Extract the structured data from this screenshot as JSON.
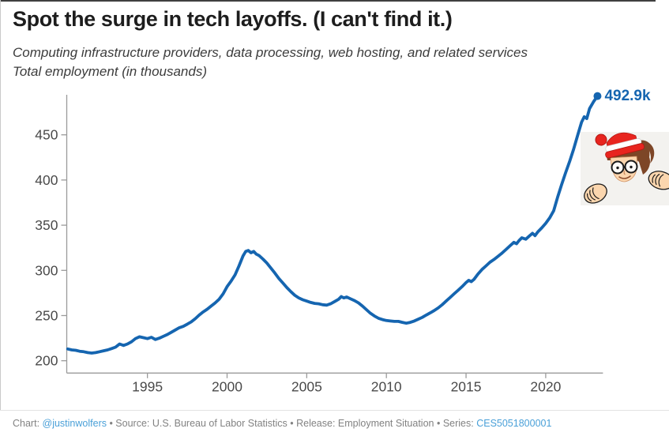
{
  "header": {
    "title": "Spot the surge in tech layoffs. (I can't find it.)",
    "subtitle_line1": "Computing infrastructure providers, data processing, web hosting, and related services",
    "subtitle_line2": "Total employment (in thousands)"
  },
  "icons": {
    "waldo": "waldo-peeking-cartoon"
  },
  "chart_data": {
    "type": "line",
    "title": "Spot the surge in tech layoffs. (I can't find it.)",
    "ylabel": "Total employment (in thousands)",
    "xlabel": "",
    "grid": false,
    "legend_position": "none",
    "line_color": "#1565b0",
    "axis_color": "#9a9a9a",
    "tick_label_color": "#4a4a4a",
    "x_ticks": [
      1995,
      2000,
      2005,
      2010,
      2015,
      2020
    ],
    "y_ticks": [
      200,
      250,
      300,
      350,
      400,
      450
    ],
    "x_range": [
      1990,
      2023.6
    ],
    "y_range_drawn": [
      186.5,
      493.5
    ],
    "end_label": "492.9k",
    "end_point": {
      "year": 2023.25,
      "value": 492.9
    },
    "points": [
      [
        1990.0,
        213
      ],
      [
        1990.25,
        212
      ],
      [
        1990.5,
        211.5
      ],
      [
        1990.75,
        210.5
      ],
      [
        1991.0,
        210
      ],
      [
        1991.25,
        209
      ],
      [
        1991.5,
        208.5
      ],
      [
        1991.75,
        209
      ],
      [
        1992.0,
        210
      ],
      [
        1992.25,
        211
      ],
      [
        1992.5,
        212
      ],
      [
        1992.75,
        213.5
      ],
      [
        1993.0,
        215
      ],
      [
        1993.25,
        218.5
      ],
      [
        1993.5,
        217
      ],
      [
        1993.75,
        218.5
      ],
      [
        1994.0,
        221
      ],
      [
        1994.25,
        224.5
      ],
      [
        1994.5,
        226.5
      ],
      [
        1994.75,
        225.5
      ],
      [
        1995.0,
        224.5
      ],
      [
        1995.25,
        226
      ],
      [
        1995.5,
        223.5
      ],
      [
        1995.75,
        225
      ],
      [
        1996.0,
        227
      ],
      [
        1996.25,
        229
      ],
      [
        1996.5,
        231.5
      ],
      [
        1996.75,
        234
      ],
      [
        1997.0,
        236.5
      ],
      [
        1997.25,
        238
      ],
      [
        1997.5,
        240.5
      ],
      [
        1997.75,
        243
      ],
      [
        1998.0,
        246.5
      ],
      [
        1998.25,
        250.5
      ],
      [
        1998.5,
        254
      ],
      [
        1998.75,
        257
      ],
      [
        1999.0,
        260.5
      ],
      [
        1999.25,
        264
      ],
      [
        1999.5,
        268
      ],
      [
        1999.75,
        274
      ],
      [
        2000.0,
        282
      ],
      [
        2000.25,
        288
      ],
      [
        2000.5,
        295
      ],
      [
        2000.75,
        305
      ],
      [
        2001.0,
        316
      ],
      [
        2001.17,
        321
      ],
      [
        2001.33,
        322
      ],
      [
        2001.5,
        319.5
      ],
      [
        2001.67,
        321
      ],
      [
        2001.83,
        318
      ],
      [
        2002.0,
        316.5
      ],
      [
        2002.25,
        312.5
      ],
      [
        2002.5,
        308
      ],
      [
        2002.75,
        302.5
      ],
      [
        2003.0,
        297
      ],
      [
        2003.25,
        291
      ],
      [
        2003.5,
        286
      ],
      [
        2003.75,
        281
      ],
      [
        2004.0,
        276.5
      ],
      [
        2004.25,
        272.5
      ],
      [
        2004.5,
        269.5
      ],
      [
        2004.75,
        267.5
      ],
      [
        2005.0,
        266
      ],
      [
        2005.25,
        264.5
      ],
      [
        2005.5,
        263.5
      ],
      [
        2005.75,
        263
      ],
      [
        2006.0,
        262
      ],
      [
        2006.25,
        261.5
      ],
      [
        2006.5,
        263
      ],
      [
        2006.75,
        265.5
      ],
      [
        2007.0,
        268
      ],
      [
        2007.17,
        271
      ],
      [
        2007.33,
        269.5
      ],
      [
        2007.5,
        270.5
      ],
      [
        2007.75,
        268.5
      ],
      [
        2008.0,
        266.5
      ],
      [
        2008.25,
        264
      ],
      [
        2008.5,
        260.5
      ],
      [
        2008.75,
        256.5
      ],
      [
        2009.0,
        252.5
      ],
      [
        2009.25,
        249.5
      ],
      [
        2009.5,
        247
      ],
      [
        2009.75,
        245.5
      ],
      [
        2010.0,
        244.5
      ],
      [
        2010.25,
        244
      ],
      [
        2010.5,
        243.5
      ],
      [
        2010.75,
        243.5
      ],
      [
        2011.0,
        242.5
      ],
      [
        2011.25,
        241.5
      ],
      [
        2011.5,
        242.5
      ],
      [
        2011.75,
        244
      ],
      [
        2012.0,
        246
      ],
      [
        2012.25,
        248
      ],
      [
        2012.5,
        250.5
      ],
      [
        2012.75,
        253
      ],
      [
        2013.0,
        255.5
      ],
      [
        2013.25,
        258.5
      ],
      [
        2013.5,
        262
      ],
      [
        2013.75,
        266
      ],
      [
        2014.0,
        270
      ],
      [
        2014.25,
        274
      ],
      [
        2014.5,
        278
      ],
      [
        2014.75,
        282
      ],
      [
        2015.0,
        286.5
      ],
      [
        2015.17,
        289
      ],
      [
        2015.33,
        287.5
      ],
      [
        2015.5,
        290
      ],
      [
        2015.75,
        296
      ],
      [
        2016.0,
        301
      ],
      [
        2016.25,
        305
      ],
      [
        2016.5,
        309
      ],
      [
        2016.75,
        312
      ],
      [
        2017.0,
        315.5
      ],
      [
        2017.25,
        319
      ],
      [
        2017.5,
        323
      ],
      [
        2017.75,
        327
      ],
      [
        2018.0,
        331
      ],
      [
        2018.17,
        329.5
      ],
      [
        2018.33,
        333
      ],
      [
        2018.5,
        336
      ],
      [
        2018.75,
        334.5
      ],
      [
        2019.0,
        338.5
      ],
      [
        2019.17,
        341
      ],
      [
        2019.33,
        338.5
      ],
      [
        2019.5,
        342.5
      ],
      [
        2019.75,
        347
      ],
      [
        2020.0,
        352
      ],
      [
        2020.25,
        358
      ],
      [
        2020.5,
        366
      ],
      [
        2020.75,
        381
      ],
      [
        2021.0,
        395
      ],
      [
        2021.25,
        408
      ],
      [
        2021.5,
        420.5
      ],
      [
        2021.75,
        434
      ],
      [
        2022.0,
        449
      ],
      [
        2022.25,
        464
      ],
      [
        2022.42,
        470
      ],
      [
        2022.58,
        468
      ],
      [
        2022.75,
        479
      ],
      [
        2023.0,
        486.5
      ],
      [
        2023.25,
        492.9
      ]
    ]
  },
  "footer": {
    "prefix": "Chart: ",
    "chart_link": "@justinwolfers",
    "middle": " • Source: U.S. Bureau of Labor Statistics • Release: Employment Situation • Series: ",
    "series_link": "CES5051800001"
  }
}
